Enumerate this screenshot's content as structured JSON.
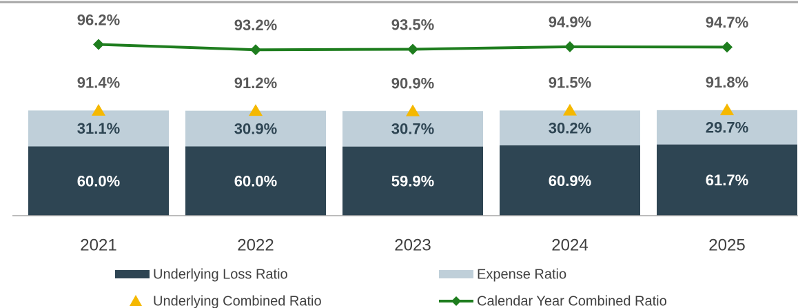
{
  "chart_data": {
    "type": "bar",
    "categories": [
      "2021",
      "2022",
      "2023",
      "2024",
      "2025"
    ],
    "ylim": [
      0,
      185
    ],
    "y2lim": [
      0,
      120
    ],
    "series": [
      {
        "name": "Underlying Loss Ratio",
        "type": "bar",
        "color": "#2e4553",
        "values": [
          60.0,
          60.0,
          59.9,
          60.9,
          61.7
        ],
        "value_labels": [
          "60.0%",
          "60.0%",
          "59.9%",
          "60.9%",
          "61.7%"
        ]
      },
      {
        "name": "Expense Ratio",
        "type": "bar",
        "color": "#bfcfd9",
        "values": [
          31.1,
          30.9,
          30.7,
          30.2,
          29.7
        ],
        "value_labels": [
          "31.1%",
          "30.9%",
          "30.7%",
          "30.2%",
          "29.7%"
        ]
      },
      {
        "name": "Underlying Combined Ratio",
        "type": "marker",
        "color": "#f5b800",
        "values": [
          91.4,
          91.2,
          90.9,
          91.5,
          91.8
        ],
        "value_labels": [
          "91.4%",
          "91.2%",
          "90.9%",
          "91.5%",
          "91.8%"
        ]
      },
      {
        "name": "Calendar Year Combined Ratio",
        "type": "line",
        "axis": "y2",
        "color": "#1e7d1e",
        "values": [
          96.2,
          93.2,
          93.5,
          94.9,
          94.7
        ],
        "value_labels": [
          "96.2%",
          "93.2%",
          "93.5%",
          "94.9%",
          "94.7%"
        ]
      }
    ]
  }
}
